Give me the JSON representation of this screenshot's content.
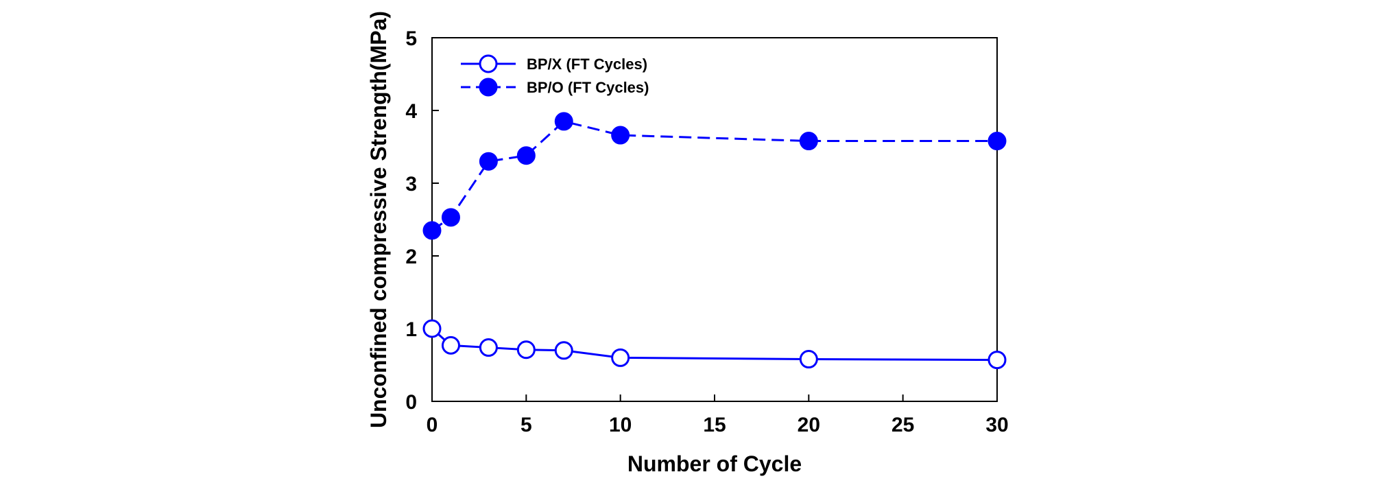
{
  "chart_data": {
    "type": "line",
    "title": "",
    "xlabel": "Number of Cycle",
    "ylabel": "Unconfined compressive Strength(MPa)",
    "xlim": [
      0,
      30
    ],
    "ylim": [
      0,
      5
    ],
    "xticks": [
      0,
      5,
      10,
      15,
      20,
      25,
      30
    ],
    "yticks": [
      0,
      1,
      2,
      3,
      4,
      5
    ],
    "grid": false,
    "legend_position": "top-left",
    "series": [
      {
        "name": "BP/X (FT Cycles)",
        "marker": "open-circle",
        "line_style": "solid",
        "color": "#0000ff",
        "x": [
          0,
          1,
          3,
          5,
          7,
          10,
          20,
          30
        ],
        "y": [
          1.0,
          0.77,
          0.74,
          0.71,
          0.7,
          0.6,
          0.58,
          0.57
        ]
      },
      {
        "name": "BP/O (FT Cycles)",
        "marker": "filled-circle",
        "line_style": "dashed",
        "color": "#0000ff",
        "x": [
          0,
          1,
          3,
          5,
          7,
          10,
          20,
          30
        ],
        "y": [
          2.35,
          2.53,
          3.3,
          3.38,
          3.85,
          3.66,
          3.58,
          3.58
        ]
      }
    ]
  }
}
